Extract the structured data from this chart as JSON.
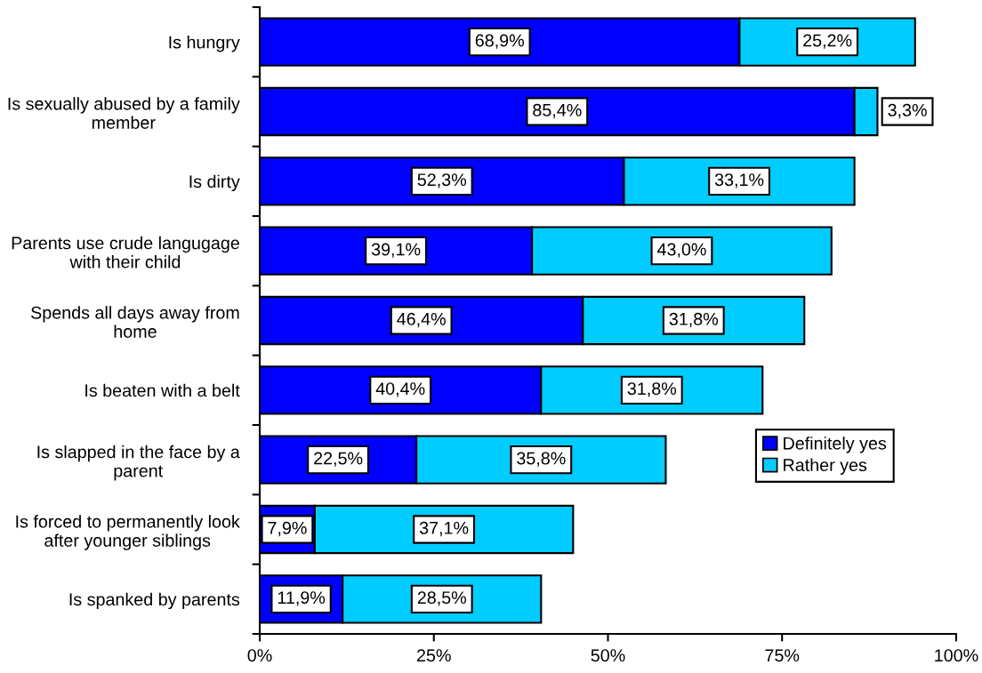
{
  "chart_data": {
    "type": "bar",
    "orientation": "horizontal",
    "stacked": true,
    "categories": [
      "Is hungry",
      "Is sexually abused by a family member",
      "Is dirty",
      "Parents use crude langugage with their child",
      "Spends all days away from home",
      "Is beaten with a belt",
      "Is slapped in the face by a parent",
      "Is forced to permanently look after younger siblings",
      "Is spanked by parents"
    ],
    "series": [
      {
        "name": "Definitely yes",
        "color": "#0000ff",
        "values": [
          68.9,
          85.4,
          52.3,
          39.1,
          46.4,
          40.4,
          22.5,
          7.9,
          11.9
        ],
        "value_labels": [
          "68,9%",
          "85,4%",
          "52,3%",
          "39,1%",
          "46,4%",
          "40,4%",
          "22,5%",
          "7,9%",
          "11,9%"
        ]
      },
      {
        "name": "Rather yes",
        "color": "#00ccff",
        "values": [
          25.2,
          3.3,
          33.1,
          43.0,
          31.8,
          31.8,
          35.8,
          37.1,
          28.5
        ],
        "value_labels": [
          "25,2%",
          "3,3%",
          "33,1%",
          "43,0%",
          "31,8%",
          "31,8%",
          "35,8%",
          "37,1%",
          "28,5%"
        ]
      }
    ],
    "xlim": [
      0,
      100
    ],
    "xticks": [
      {
        "value": 0,
        "label": "0%"
      },
      {
        "value": 25,
        "label": "25%"
      },
      {
        "value": 50,
        "label": "50%"
      },
      {
        "value": 75,
        "label": "75%"
      },
      {
        "value": 100,
        "label": "100%"
      }
    ],
    "legend": "right"
  }
}
